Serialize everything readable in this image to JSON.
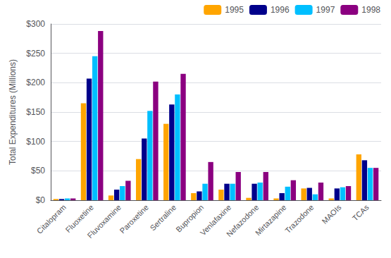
{
  "chart_data": {
    "type": "bar",
    "ylabel": "Total Expenditures (Millions)",
    "categories": [
      "Citalopram",
      "Fluoxetine",
      "Fluvoxamine",
      "Paroxetine",
      "Sertraline",
      "Bupropion",
      "Venlafaxine",
      "Nefazodone",
      "Mirtazapine",
      "Trazodone",
      "MAOIs",
      "TCAs"
    ],
    "series": [
      {
        "name": "1995",
        "color": "#FFA500",
        "values": [
          2,
          165,
          8,
          70,
          130,
          12,
          18,
          4,
          3,
          20,
          3,
          78
        ]
      },
      {
        "name": "1996",
        "color": "#00008B",
        "values": [
          2,
          207,
          18,
          105,
          163,
          15,
          28,
          28,
          12,
          21,
          20,
          68
        ]
      },
      {
        "name": "1997",
        "color": "#00BFFF",
        "values": [
          3,
          245,
          24,
          152,
          180,
          28,
          28,
          30,
          23,
          10,
          22,
          55
        ]
      },
      {
        "name": "1998",
        "color": "#8B0080",
        "values": [
          3,
          288,
          33,
          202,
          215,
          65,
          48,
          48,
          34,
          30,
          24,
          55
        ]
      }
    ],
    "ylim": [
      0,
      300
    ],
    "yticks": [
      {
        "value": 0,
        "label": "$0"
      },
      {
        "value": 50,
        "label": "$50"
      },
      {
        "value": 100,
        "label": "$100"
      },
      {
        "value": 150,
        "label": "$150"
      },
      {
        "value": 200,
        "label": "$200"
      },
      {
        "value": 250,
        "label": "$250"
      },
      {
        "value": 300,
        "label": "$300"
      }
    ],
    "grid": true,
    "legend": "upper right"
  }
}
